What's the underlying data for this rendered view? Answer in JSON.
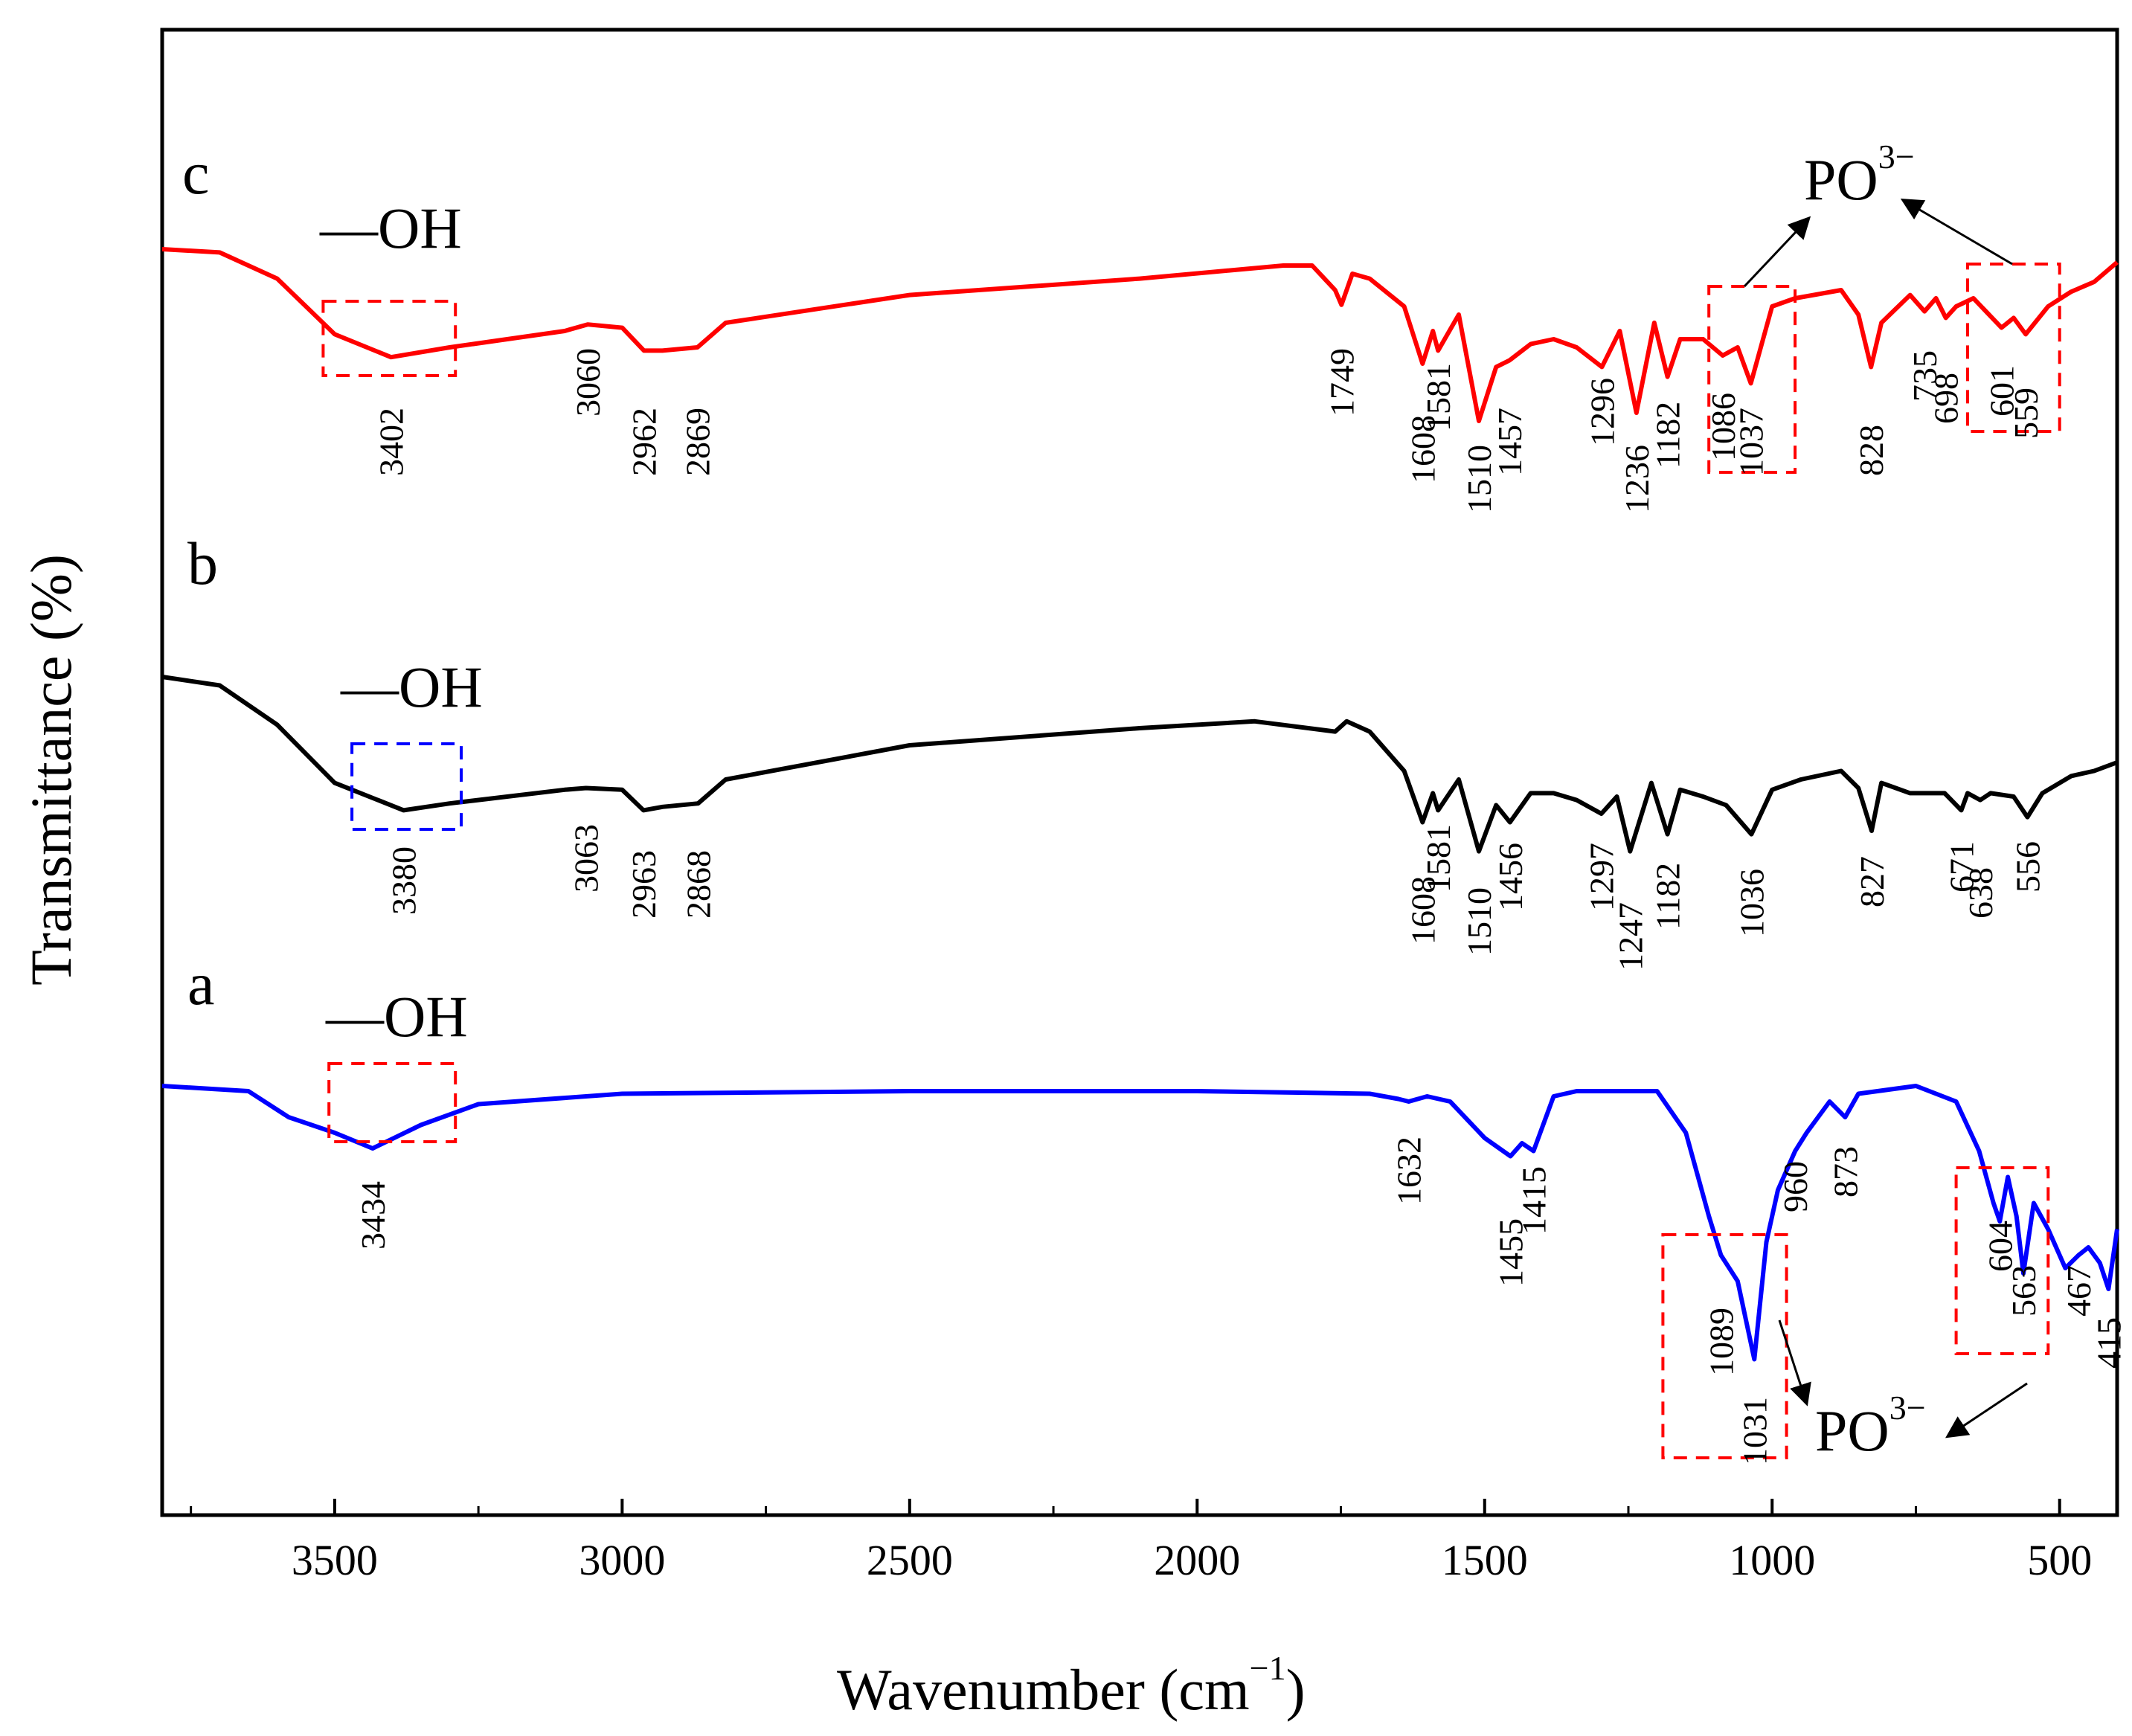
{
  "chart_data": {
    "type": "line",
    "xlabel": "Wavenumber (cm",
    "xlabel_sup": "−1",
    "xlabel_close": ")",
    "ylabel": "Transmittance (%)",
    "xlim": [
      3800,
      400
    ],
    "x_reversed": true,
    "xticks": [
      "3500",
      "3000",
      "2500",
      "2000",
      "1500",
      "1000",
      "500"
    ],
    "xtick_values": [
      3500,
      3000,
      2500,
      2000,
      1500,
      1000,
      500
    ],
    "series": [
      {
        "name": "c",
        "color": "#ff0000",
        "group_label": "—OH",
        "baseline_x": [
          3800,
          3700,
          3600,
          3500,
          3402,
          3300,
          3100,
          3060,
          3000,
          2962,
          2930,
          2869,
          2820,
          2500,
          2100,
          1850,
          1800,
          1760,
          1749,
          1730,
          1700,
          1640,
          1608,
          1590,
          1581,
          1545,
          1510,
          1480,
          1457,
          1420,
          1380,
          1340,
          1296,
          1265,
          1236,
          1205,
          1182,
          1160,
          1120,
          1086,
          1060,
          1037,
          1000,
          960,
          880,
          850,
          828,
          810,
          760,
          735,
          715,
          698,
          680,
          650,
          601,
          580,
          559,
          520,
          480,
          440,
          400
        ],
        "baseline_y": [
          0.0,
          0.02,
          0.18,
          0.52,
          0.66,
          0.6,
          0.5,
          0.46,
          0.48,
          0.62,
          0.62,
          0.6,
          0.45,
          0.28,
          0.18,
          0.1,
          0.1,
          0.25,
          0.34,
          0.15,
          0.18,
          0.35,
          0.7,
          0.5,
          0.62,
          0.4,
          1.05,
          0.72,
          0.68,
          0.58,
          0.55,
          0.6,
          0.72,
          0.5,
          1.0,
          0.45,
          0.78,
          0.55,
          0.55,
          0.65,
          0.6,
          0.82,
          0.35,
          0.3,
          0.25,
          0.4,
          0.72,
          0.45,
          0.28,
          0.38,
          0.3,
          0.42,
          0.35,
          0.3,
          0.48,
          0.42,
          0.52,
          0.35,
          0.26,
          0.2,
          0.08
        ],
        "peaks": [
          "3402",
          "3060",
          "2962",
          "2869",
          "1749",
          "1608",
          "1581",
          "1510",
          "1457",
          "1296",
          "1236",
          "1182",
          "1086",
          "1037",
          "828",
          "735",
          "698",
          "601",
          "559"
        ]
      },
      {
        "name": "b",
        "color": "#000000",
        "group_label": "—OH",
        "baseline_x": [
          3800,
          3700,
          3600,
          3500,
          3380,
          3300,
          3100,
          3063,
          3000,
          2963,
          2930,
          2868,
          2820,
          2500,
          2100,
          1900,
          1760,
          1740,
          1700,
          1640,
          1608,
          1590,
          1581,
          1545,
          1510,
          1480,
          1456,
          1420,
          1380,
          1340,
          1297,
          1270,
          1247,
          1210,
          1182,
          1160,
          1120,
          1080,
          1036,
          1000,
          950,
          880,
          850,
          827,
          810,
          760,
          700,
          671,
          660,
          638,
          620,
          580,
          556,
          530,
          480,
          440,
          400
        ],
        "baseline_y": [
          0.0,
          0.05,
          0.28,
          0.62,
          0.78,
          0.74,
          0.66,
          0.65,
          0.66,
          0.78,
          0.76,
          0.74,
          0.6,
          0.4,
          0.3,
          0.26,
          0.32,
          0.26,
          0.32,
          0.55,
          0.85,
          0.68,
          0.78,
          0.6,
          1.02,
          0.75,
          0.85,
          0.68,
          0.68,
          0.72,
          0.8,
          0.7,
          1.02,
          0.62,
          0.92,
          0.66,
          0.7,
          0.75,
          0.92,
          0.66,
          0.6,
          0.55,
          0.65,
          0.9,
          0.62,
          0.68,
          0.68,
          0.78,
          0.68,
          0.72,
          0.68,
          0.7,
          0.82,
          0.68,
          0.58,
          0.55,
          0.5
        ],
        "peaks": [
          "3380",
          "3063",
          "2963",
          "2868",
          "1608",
          "1581",
          "1510",
          "1456",
          "1297",
          "1247",
          "1182",
          "1036",
          "827",
          "671",
          "638",
          "556"
        ]
      },
      {
        "name": "a",
        "color": "#0000ff",
        "group_label": "—OH",
        "baseline_x": [
          3800,
          3650,
          3580,
          3500,
          3434,
          3350,
          3250,
          3000,
          2500,
          2000,
          1700,
          1650,
          1632,
          1600,
          1560,
          1500,
          1455,
          1435,
          1415,
          1380,
          1340,
          1200,
          1150,
          1110,
          1089,
          1060,
          1031,
          1010,
          990,
          960,
          940,
          900,
          873,
          850,
          750,
          680,
          640,
          615,
          604,
          590,
          575,
          563,
          545,
          520,
          490,
          467,
          450,
          430,
          415,
          400
        ],
        "baseline_y": [
          0.0,
          0.02,
          0.12,
          0.18,
          0.24,
          0.15,
          0.07,
          0.03,
          0.02,
          0.02,
          0.03,
          0.05,
          0.06,
          0.04,
          0.06,
          0.2,
          0.27,
          0.22,
          0.25,
          0.04,
          0.02,
          0.02,
          0.18,
          0.5,
          0.65,
          0.75,
          1.05,
          0.6,
          0.4,
          0.25,
          0.18,
          0.06,
          0.12,
          0.03,
          0.0,
          0.06,
          0.25,
          0.45,
          0.52,
          0.35,
          0.5,
          0.72,
          0.45,
          0.55,
          0.7,
          0.65,
          0.62,
          0.68,
          0.78,
          0.55
        ],
        "peaks": [
          "3434",
          "1632",
          "1455",
          "1415",
          "1089",
          "1031",
          "960",
          "873",
          "604",
          "563",
          "467",
          "415"
        ]
      }
    ],
    "annotations": {
      "po_label": "PO",
      "po_sup": "3−"
    }
  }
}
